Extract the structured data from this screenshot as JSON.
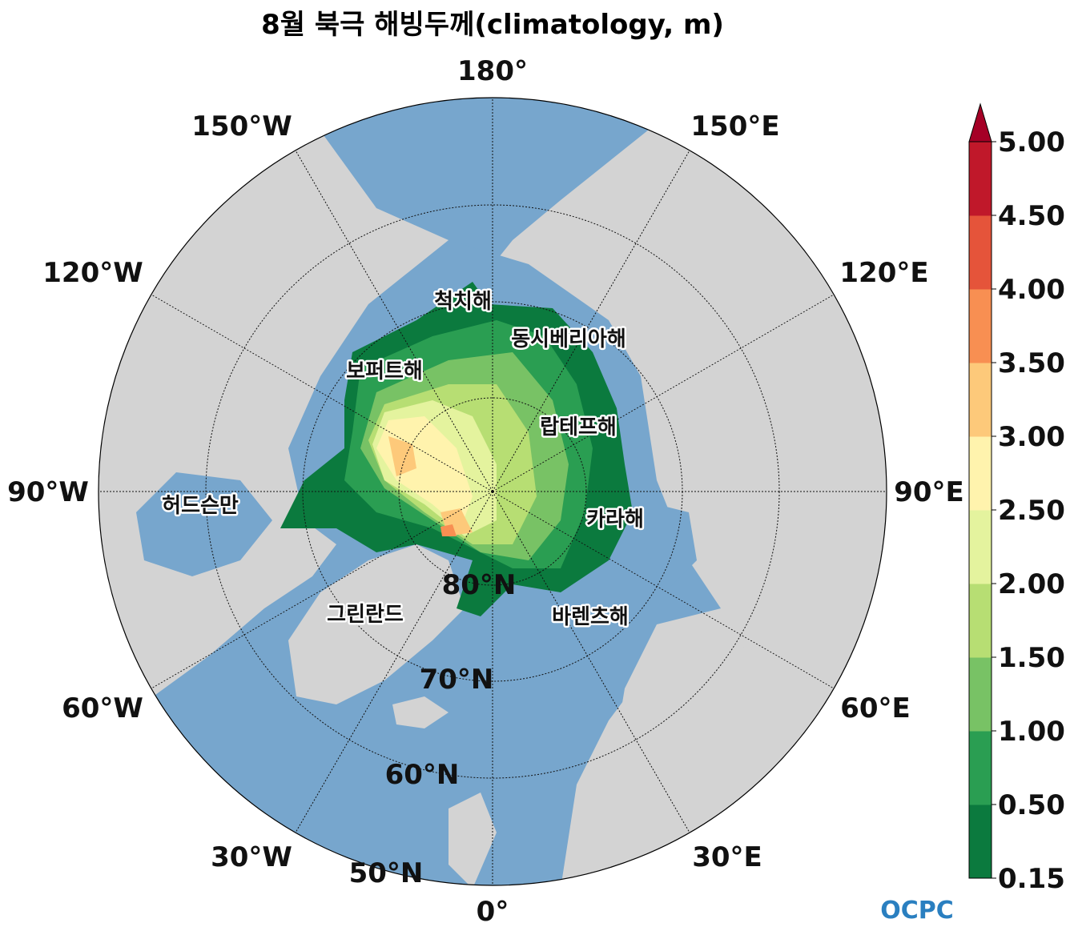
{
  "title": "8월 북극 해빙두께(climatology, m)",
  "longitude_labels": [
    "180°",
    "150°E",
    "120°E",
    "90°E",
    "60°E",
    "30°E",
    "0°",
    "30°W",
    "60°W",
    "90°W",
    "120°W",
    "150°W"
  ],
  "latitude_labels": [
    "80°N",
    "70°N",
    "60°N",
    "50°N"
  ],
  "region_labels": [
    "척치해",
    "동시베리아해",
    "보퍼트해",
    "랍테프해",
    "허드슨만",
    "카라해",
    "그린란드",
    "바렌츠해"
  ],
  "colorbar": {
    "ticks": [
      {
        "value": 0.15,
        "label": "0.15"
      },
      {
        "value": 0.5,
        "label": "0.50"
      },
      {
        "value": 1,
        "label": "1.00"
      },
      {
        "value": 1.5,
        "label": "1.50"
      },
      {
        "value": 2,
        "label": "2.00"
      },
      {
        "value": 2.5,
        "label": "2.50"
      },
      {
        "value": 3,
        "label": "3.00"
      },
      {
        "value": 3.5,
        "label": "3.50"
      },
      {
        "value": 4,
        "label": "4.00"
      },
      {
        "value": 4.5,
        "label": "4.50"
      },
      {
        "value": 5,
        "label": "5.00"
      }
    ],
    "colors": [
      "#0b7a3e",
      "#2a9e52",
      "#78c265",
      "#b7de73",
      "#e4f39e",
      "#fff3ad",
      "#fdc97a",
      "#f88f52",
      "#e5543a",
      "#c0182a"
    ],
    "extend_color": "#a50026"
  },
  "logo": "OCPC"
}
